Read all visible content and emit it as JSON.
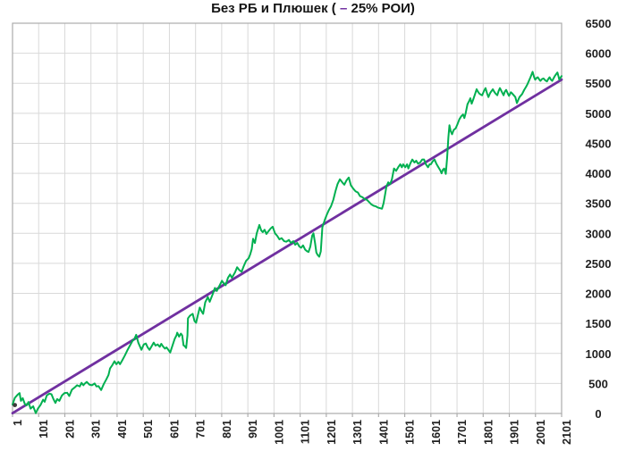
{
  "title": {
    "prefix": "Без РБ и Плюшек ( ",
    "dash": "–",
    "suffix": " 25% РОИ)"
  },
  "colors": {
    "equity_line": "#00B050",
    "trend_line": "#7030A0",
    "gridline": "#D9D9D9",
    "plot_border": "#ACACAC",
    "tick": "#ACACAC",
    "label_text": "#1f1f1f",
    "background": "#ffffff"
  },
  "chart_data": {
    "type": "line",
    "title": "Без РБ и Плюшек ( – 25% РОИ)",
    "xlabel": "",
    "ylabel": "",
    "xlim": [
      1,
      2101
    ],
    "ylim": [
      0,
      6500
    ],
    "x_ticks": [
      1,
      101,
      201,
      301,
      401,
      501,
      601,
      701,
      801,
      901,
      1001,
      1101,
      1201,
      1301,
      1401,
      1501,
      1601,
      1701,
      1801,
      1901,
      2001,
      2101
    ],
    "y_ticks": [
      0,
      500,
      1000,
      1500,
      2000,
      2500,
      3000,
      3500,
      4000,
      4500,
      5000,
      5500,
      6000,
      6500
    ],
    "grid": "on",
    "legend_position": "none",
    "y_axis_side": "right",
    "x_label_rotation": -90,
    "start_marker": {
      "x": 10,
      "value": 140,
      "radius": 2.4,
      "color": "#3b3b3b"
    },
    "series": [
      {
        "name": "equity-curve",
        "color": "#00B050",
        "width": 2,
        "points": [
          [
            1,
            150
          ],
          [
            10,
            260
          ],
          [
            20,
            310
          ],
          [
            28,
            340
          ],
          [
            33,
            210
          ],
          [
            40,
            255
          ],
          [
            48,
            160
          ],
          [
            55,
            135
          ],
          [
            62,
            190
          ],
          [
            70,
            80
          ],
          [
            80,
            120
          ],
          [
            90,
            5
          ],
          [
            98,
            80
          ],
          [
            108,
            140
          ],
          [
            118,
            230
          ],
          [
            124,
            195
          ],
          [
            132,
            300
          ],
          [
            142,
            330
          ],
          [
            150,
            320
          ],
          [
            158,
            235
          ],
          [
            165,
            175
          ],
          [
            172,
            240
          ],
          [
            180,
            210
          ],
          [
            190,
            300
          ],
          [
            200,
            340
          ],
          [
            210,
            345
          ],
          [
            218,
            290
          ],
          [
            228,
            395
          ],
          [
            238,
            430
          ],
          [
            248,
            470
          ],
          [
            258,
            450
          ],
          [
            265,
            510
          ],
          [
            272,
            470
          ],
          [
            278,
            500
          ],
          [
            285,
            525
          ],
          [
            295,
            480
          ],
          [
            305,
            470
          ],
          [
            315,
            500
          ],
          [
            322,
            450
          ],
          [
            330,
            455
          ],
          [
            340,
            390
          ],
          [
            350,
            490
          ],
          [
            360,
            570
          ],
          [
            368,
            640
          ],
          [
            374,
            750
          ],
          [
            382,
            800
          ],
          [
            391,
            870
          ],
          [
            398,
            820
          ],
          [
            406,
            860
          ],
          [
            412,
            820
          ],
          [
            420,
            880
          ],
          [
            430,
            960
          ],
          [
            440,
            1050
          ],
          [
            450,
            1130
          ],
          [
            460,
            1210
          ],
          [
            467,
            1240
          ],
          [
            474,
            1310
          ],
          [
            482,
            1180
          ],
          [
            494,
            1060
          ],
          [
            503,
            1150
          ],
          [
            511,
            1165
          ],
          [
            518,
            1100
          ],
          [
            525,
            1060
          ],
          [
            533,
            1120
          ],
          [
            541,
            1180
          ],
          [
            548,
            1130
          ],
          [
            556,
            1150
          ],
          [
            564,
            1110
          ],
          [
            570,
            1160
          ],
          [
            576,
            1120
          ],
          [
            584,
            1080
          ],
          [
            590,
            1100
          ],
          [
            597,
            1060
          ],
          [
            604,
            1015
          ],
          [
            612,
            1120
          ],
          [
            621,
            1240
          ],
          [
            628,
            1300
          ],
          [
            631,
            1345
          ],
          [
            638,
            1280
          ],
          [
            645,
            1330
          ],
          [
            650,
            1300
          ],
          [
            655,
            1135
          ],
          [
            660,
            1120
          ],
          [
            665,
            1090
          ],
          [
            670,
            1300
          ],
          [
            672,
            1585
          ],
          [
            680,
            1630
          ],
          [
            690,
            1660
          ],
          [
            697,
            1540
          ],
          [
            703,
            1510
          ],
          [
            710,
            1640
          ],
          [
            717,
            1765
          ],
          [
            724,
            1700
          ],
          [
            730,
            1660
          ],
          [
            738,
            1850
          ],
          [
            748,
            1940
          ],
          [
            755,
            1860
          ],
          [
            766,
            1980
          ],
          [
            775,
            2090
          ],
          [
            782,
            2040
          ],
          [
            794,
            2140
          ],
          [
            802,
            2210
          ],
          [
            810,
            2160
          ],
          [
            816,
            2135
          ],
          [
            825,
            2260
          ],
          [
            833,
            2315
          ],
          [
            840,
            2260
          ],
          [
            852,
            2350
          ],
          [
            860,
            2435
          ],
          [
            868,
            2390
          ],
          [
            877,
            2360
          ],
          [
            885,
            2450
          ],
          [
            894,
            2540
          ],
          [
            904,
            2585
          ],
          [
            910,
            2650
          ],
          [
            916,
            2740
          ],
          [
            921,
            2910
          ],
          [
            928,
            2840
          ],
          [
            935,
            3000
          ],
          [
            945,
            3140
          ],
          [
            952,
            3050
          ],
          [
            958,
            3020
          ],
          [
            965,
            3060
          ],
          [
            972,
            2990
          ],
          [
            979,
            3030
          ],
          [
            988,
            3080
          ],
          [
            996,
            3110
          ],
          [
            1005,
            3000
          ],
          [
            1013,
            2960
          ],
          [
            1022,
            2900
          ],
          [
            1030,
            2920
          ],
          [
            1040,
            2870
          ],
          [
            1048,
            2860
          ],
          [
            1058,
            2890
          ],
          [
            1066,
            2840
          ],
          [
            1075,
            2870
          ],
          [
            1082,
            2810
          ],
          [
            1090,
            2840
          ],
          [
            1098,
            2780
          ],
          [
            1105,
            2760
          ],
          [
            1112,
            2800
          ],
          [
            1120,
            2730
          ],
          [
            1128,
            2700
          ],
          [
            1133,
            2690
          ],
          [
            1140,
            2780
          ],
          [
            1147,
            2960
          ],
          [
            1152,
            3000
          ],
          [
            1158,
            2840
          ],
          [
            1163,
            2680
          ],
          [
            1168,
            2640
          ],
          [
            1174,
            2610
          ],
          [
            1180,
            2700
          ],
          [
            1186,
            3100
          ],
          [
            1195,
            3220
          ],
          [
            1202,
            3300
          ],
          [
            1210,
            3380
          ],
          [
            1219,
            3450
          ],
          [
            1228,
            3560
          ],
          [
            1236,
            3700
          ],
          [
            1244,
            3820
          ],
          [
            1253,
            3900
          ],
          [
            1262,
            3850
          ],
          [
            1270,
            3810
          ],
          [
            1278,
            3880
          ],
          [
            1287,
            3930
          ],
          [
            1295,
            3800
          ],
          [
            1305,
            3740
          ],
          [
            1313,
            3700
          ],
          [
            1322,
            3680
          ],
          [
            1330,
            3620
          ],
          [
            1340,
            3600
          ],
          [
            1348,
            3570
          ],
          [
            1356,
            3560
          ],
          [
            1365,
            3520
          ],
          [
            1374,
            3480
          ],
          [
            1382,
            3460
          ],
          [
            1390,
            3450
          ],
          [
            1398,
            3430
          ],
          [
            1406,
            3420
          ],
          [
            1414,
            3410
          ],
          [
            1420,
            3500
          ],
          [
            1426,
            3650
          ],
          [
            1431,
            3780
          ],
          [
            1438,
            3850
          ],
          [
            1445,
            3820
          ],
          [
            1452,
            3900
          ],
          [
            1460,
            4080
          ],
          [
            1468,
            4040
          ],
          [
            1476,
            4100
          ],
          [
            1484,
            4150
          ],
          [
            1490,
            4100
          ],
          [
            1495,
            4150
          ],
          [
            1503,
            4100
          ],
          [
            1510,
            4150
          ],
          [
            1515,
            4080
          ],
          [
            1522,
            4160
          ],
          [
            1530,
            4230
          ],
          [
            1538,
            4180
          ],
          [
            1545,
            4210
          ],
          [
            1552,
            4160
          ],
          [
            1560,
            4180
          ],
          [
            1568,
            4230
          ],
          [
            1575,
            4230
          ],
          [
            1582,
            4150
          ],
          [
            1590,
            4100
          ],
          [
            1596,
            4150
          ],
          [
            1601,
            4150
          ],
          [
            1608,
            4200
          ],
          [
            1615,
            4230
          ],
          [
            1622,
            4160
          ],
          [
            1630,
            4100
          ],
          [
            1637,
            4050
          ],
          [
            1642,
            4000
          ],
          [
            1647,
            4060
          ],
          [
            1652,
            4080
          ],
          [
            1658,
            3990
          ],
          [
            1663,
            4250
          ],
          [
            1668,
            4600
          ],
          [
            1672,
            4800
          ],
          [
            1677,
            4700
          ],
          [
            1682,
            4650
          ],
          [
            1688,
            4720
          ],
          [
            1696,
            4750
          ],
          [
            1703,
            4820
          ],
          [
            1710,
            4900
          ],
          [
            1717,
            4950
          ],
          [
            1724,
            4980
          ],
          [
            1729,
            4920
          ],
          [
            1734,
            5000
          ],
          [
            1741,
            5150
          ],
          [
            1747,
            5200
          ],
          [
            1752,
            5250
          ],
          [
            1757,
            5160
          ],
          [
            1763,
            5230
          ],
          [
            1770,
            5320
          ],
          [
            1776,
            5400
          ],
          [
            1781,
            5360
          ],
          [
            1786,
            5330
          ],
          [
            1792,
            5310
          ],
          [
            1797,
            5300
          ],
          [
            1804,
            5370
          ],
          [
            1810,
            5420
          ],
          [
            1816,
            5330
          ],
          [
            1821,
            5270
          ],
          [
            1828,
            5340
          ],
          [
            1838,
            5400
          ],
          [
            1843,
            5360
          ],
          [
            1848,
            5330
          ],
          [
            1855,
            5300
          ],
          [
            1860,
            5370
          ],
          [
            1865,
            5420
          ],
          [
            1872,
            5360
          ],
          [
            1879,
            5300
          ],
          [
            1884,
            5360
          ],
          [
            1889,
            5390
          ],
          [
            1895,
            5330
          ],
          [
            1900,
            5290
          ],
          [
            1907,
            5350
          ],
          [
            1912,
            5330
          ],
          [
            1918,
            5300
          ],
          [
            1924,
            5270
          ],
          [
            1930,
            5170
          ],
          [
            1936,
            5230
          ],
          [
            1940,
            5270
          ],
          [
            1946,
            5300
          ],
          [
            1950,
            5320
          ],
          [
            1958,
            5390
          ],
          [
            1965,
            5440
          ],
          [
            1971,
            5490
          ],
          [
            1975,
            5530
          ],
          [
            1982,
            5600
          ],
          [
            1990,
            5690
          ],
          [
            1996,
            5600
          ],
          [
            2000,
            5560
          ],
          [
            2006,
            5590
          ],
          [
            2010,
            5600
          ],
          [
            2016,
            5560
          ],
          [
            2020,
            5540
          ],
          [
            2026,
            5570
          ],
          [
            2032,
            5580
          ],
          [
            2038,
            5550
          ],
          [
            2045,
            5530
          ],
          [
            2050,
            5570
          ],
          [
            2055,
            5600
          ],
          [
            2060,
            5560
          ],
          [
            2065,
            5540
          ],
          [
            2070,
            5580
          ],
          [
            2075,
            5620
          ],
          [
            2080,
            5650
          ],
          [
            2085,
            5680
          ],
          [
            2090,
            5600
          ],
          [
            2092,
            5560
          ],
          [
            2096,
            5590
          ],
          [
            2101,
            5620
          ]
        ]
      },
      {
        "name": "linear-trend",
        "color": "#7030A0",
        "width": 2.8,
        "points": [
          [
            1,
            5
          ],
          [
            2101,
            5560
          ]
        ]
      }
    ]
  }
}
